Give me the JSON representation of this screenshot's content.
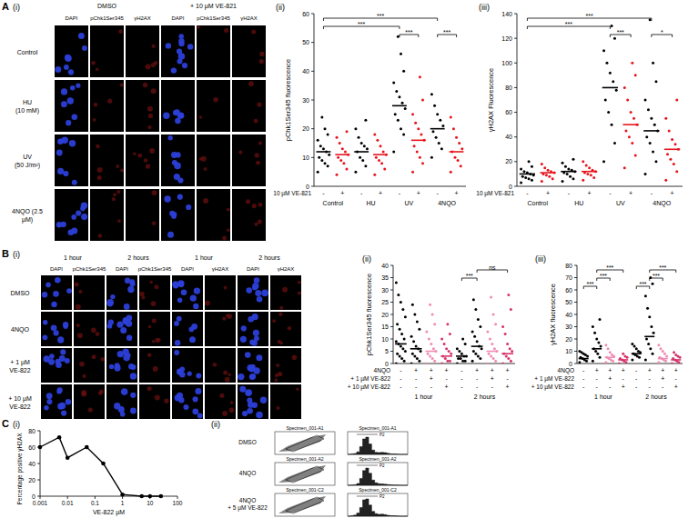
{
  "image_panels": [
    {
      "letter": "A",
      "label": "(i)",
      "columns": [
        {
          "label": "DMSO",
          "channels": [
            "DAPI",
            "pChk1Ser345",
            "γH2AX"
          ]
        },
        {
          "label": "+ 10 µM VE-821",
          "channels": [
            "DAPI",
            "pChk1Ser345",
            "γH2AX"
          ]
        }
      ],
      "rows": [
        [
          "Control"
        ],
        [
          "HU",
          "(10 mM)"
        ],
        [
          "UV",
          "(50 J/m²)"
        ],
        [
          "4NQO (2.5",
          "µM)"
        ]
      ]
    },
    {
      "letter": "B",
      "label": "(i)",
      "columns": [
        {
          "label": "1 hour",
          "channels": [
            "DAPI",
            "pChk1Ser345"
          ]
        },
        {
          "label": "2 hours",
          "channels": [
            "DAPI",
            "pChk1Ser345"
          ]
        },
        {
          "label": "1 hour",
          "channels": [
            "DAPI",
            "γH2AX"
          ]
        },
        {
          "label": "2 hours",
          "channels": [
            "DAPI",
            "γH2AX"
          ]
        }
      ],
      "rows": [
        [
          "DMSO"
        ],
        [
          "4NQO"
        ],
        [
          "+ 1 µM",
          "VE-822"
        ],
        [
          "+ 10 µM",
          "VE-822"
        ]
      ]
    }
  ],
  "chart_data": [
    {
      "type": "dot_plot",
      "label": "(ii)",
      "y_label": "pChk1Ser345 fluorescence",
      "ylim": [
        0,
        60
      ],
      "yticks": [
        0,
        10,
        20,
        30,
        40,
        50,
        60
      ],
      "categories": [
        "Control",
        "HU",
        "UV",
        "4NQO"
      ],
      "sign_rows": [
        "10 µM VE-821"
      ],
      "series": [
        {
          "color": "#000000",
          "signs": [
            "-"
          ],
          "values": [
            [
              5,
              7,
              8,
              9,
              10,
              11,
              12,
              13,
              14,
              16,
              18,
              20,
              24
            ],
            [
              5,
              7,
              9,
              10,
              12,
              13,
              14,
              15,
              17,
              20,
              23
            ],
            [
              12,
              18,
              20,
              23,
              25,
              27,
              29,
              31,
              33,
              36,
              40,
              46,
              52
            ],
            [
              10,
              13,
              15,
              17,
              19,
              21,
              23,
              25,
              28,
              32
            ]
          ],
          "means": [
            12,
            12,
            28,
            20
          ]
        },
        {
          "color": "#e8141c",
          "signs": [
            "+"
          ],
          "values": [
            [
              4,
              6,
              8,
              9,
              10,
              11,
              12,
              13,
              15,
              17,
              19
            ],
            [
              4,
              6,
              8,
              9,
              10,
              11,
              12,
              14,
              16,
              18
            ],
            [
              5,
              8,
              10,
              12,
              14,
              16,
              18,
              20,
              22,
              25,
              30,
              38
            ],
            [
              5,
              7,
              9,
              10,
              12,
              13,
              15,
              17,
              20,
              24
            ]
          ],
          "means": [
            11,
            11,
            16,
            12
          ]
        }
      ],
      "significance": [
        {
          "from": [
            2,
            0
          ],
          "to": [
            2,
            1
          ],
          "label": "***"
        },
        {
          "from": [
            3,
            0
          ],
          "to": [
            3,
            1
          ],
          "label": "***"
        },
        {
          "from": [
            0,
            0
          ],
          "to": [
            2,
            0
          ],
          "label": "***"
        },
        {
          "from": [
            0,
            0
          ],
          "to": [
            3,
            0
          ],
          "label": "***"
        }
      ]
    },
    {
      "type": "dot_plot",
      "label": "(iii)",
      "y_label": "γH2AX Fluorescence",
      "ylim": [
        0,
        140
      ],
      "yticks": [
        0,
        20,
        40,
        60,
        80,
        100,
        120,
        140
      ],
      "categories": [
        "Control",
        "HU",
        "UV",
        "4NQO"
      ],
      "sign_rows": [
        "10 µM VE-821"
      ],
      "series": [
        {
          "color": "#000000",
          "signs": [
            "-"
          ],
          "values": [
            [
              3,
              5,
              6,
              7,
              8,
              9,
              10,
              11,
              12,
              14,
              16,
              20
            ],
            [
              4,
              6,
              8,
              10,
              11,
              12,
              13,
              14,
              16,
              19,
              22
            ],
            [
              20,
              35,
              50,
              60,
              70,
              78,
              85,
              92,
              100,
              110,
              120,
              130
            ],
            [
              10,
              20,
              28,
              35,
              40,
              45,
              50,
              55,
              62,
              70,
              85,
              100,
              135
            ]
          ],
          "means": [
            10,
            12,
            80,
            45
          ]
        },
        {
          "color": "#e8141c",
          "signs": [
            "+"
          ],
          "values": [
            [
              4,
              6,
              8,
              9,
              10,
              11,
              12,
              13,
              15,
              18
            ],
            [
              5,
              7,
              9,
              10,
              11,
              12,
              13,
              15,
              17,
              20
            ],
            [
              15,
              25,
              35,
              40,
              45,
              50,
              55,
              60,
              70,
              80,
              90,
              100
            ],
            [
              5,
              12,
              18,
              22,
              26,
              30,
              34,
              38,
              45,
              55,
              70
            ]
          ],
          "means": [
            11,
            12,
            50,
            30
          ]
        }
      ],
      "significance": [
        {
          "from": [
            2,
            0
          ],
          "to": [
            2,
            1
          ],
          "label": "***"
        },
        {
          "from": [
            3,
            0
          ],
          "to": [
            3,
            1
          ],
          "label": "*"
        },
        {
          "from": [
            0,
            0
          ],
          "to": [
            2,
            0
          ],
          "label": "***"
        },
        {
          "from": [
            0,
            0
          ],
          "to": [
            3,
            0
          ],
          "label": "***"
        }
      ]
    },
    {
      "type": "dot_plot",
      "label": "(ii)",
      "y_label": "pChk1Ser345 fluorescence",
      "ylim": [
        0,
        40
      ],
      "yticks": [
        0,
        5,
        10,
        15,
        20,
        25,
        30,
        35,
        40
      ],
      "categories": [
        "1 hour",
        "2 hours"
      ],
      "sign_rows": [
        "4NQO",
        "+ 1 µM VE-822",
        "+ 10 µM VE-822"
      ],
      "series": [
        {
          "color": "#000000",
          "signs": [
            "-",
            "-",
            "-"
          ],
          "values": [
            [
              0,
              1,
              2,
              3,
              4,
              5,
              6,
              7,
              8,
              9,
              10,
              12,
              14,
              16,
              19,
              22,
              25,
              28,
              33
            ],
            [
              0,
              1,
              1,
              2,
              2,
              3,
              3,
              4,
              5,
              6,
              8,
              10
            ]
          ],
          "means": [
            8,
            3
          ]
        },
        {
          "color": "#000000",
          "signs": [
            "+",
            "-",
            "-"
          ],
          "values": [
            [
              0,
              1,
              2,
              3,
              4,
              5,
              6,
              7,
              9,
              11,
              14,
              17,
              20,
              24
            ],
            [
              1,
              2,
              3,
              4,
              5,
              6,
              7,
              9,
              11,
              13,
              15,
              18,
              22,
              26
            ]
          ],
          "means": [
            6,
            7
          ]
        },
        {
          "color": "#f08cb4",
          "signs": [
            "+",
            "+",
            "-"
          ],
          "values": [
            [
              0,
              1,
              2,
              3,
              4,
              5,
              6,
              8,
              10,
              13,
              16,
              20,
              24
            ],
            [
              0,
              1,
              2,
              3,
              4,
              5,
              6,
              8,
              10,
              13,
              16,
              20,
              27
            ]
          ],
          "means": [
            5,
            5
          ]
        },
        {
          "color": "#d6336c",
          "signs": [
            "+",
            "-",
            "+"
          ],
          "values": [
            [
              0,
              1,
              1,
              2,
              3,
              4,
              5,
              6,
              8,
              10,
              12,
              16
            ],
            [
              0,
              1,
              2,
              3,
              4,
              5,
              6,
              8,
              12,
              15,
              22,
              28
            ]
          ],
          "means": [
            3,
            4
          ]
        }
      ],
      "significance": [
        {
          "from": [
            1,
            0
          ],
          "to": [
            1,
            1
          ],
          "label": "***"
        },
        {
          "from": [
            1,
            1
          ],
          "to": [
            1,
            3
          ],
          "label": "ns"
        }
      ]
    },
    {
      "type": "dot_plot",
      "label": "(iii)",
      "y_label": "γH2AX fluorescence",
      "ylim": [
        0,
        80
      ],
      "yticks": [
        0,
        10,
        20,
        30,
        40,
        50,
        60,
        70,
        80
      ],
      "categories": [
        "1 hour",
        "2 hours"
      ],
      "sign_rows": [
        "4NQO",
        "+ 1 µM VE-822",
        "+ 10 µM VE-822"
      ],
      "series": [
        {
          "color": "#000000",
          "signs": [
            "-",
            "-",
            "-"
          ],
          "values": [
            [
              1,
              2,
              3,
              4,
              5,
              6,
              7,
              8,
              9,
              10
            ],
            [
              3,
              5,
              6,
              7,
              8,
              9,
              10,
              12,
              14,
              16
            ]
          ],
          "means": [
            4,
            8
          ]
        },
        {
          "color": "#000000",
          "signs": [
            "+",
            "-",
            "-"
          ],
          "values": [
            [
              2,
              5,
              8,
              10,
              12,
              14,
              17,
              20,
              25,
              30,
              36
            ],
            [
              3,
              8,
              12,
              16,
              20,
              25,
              30,
              38,
              45,
              55,
              65,
              70
            ]
          ],
          "means": [
            12,
            22
          ]
        },
        {
          "color": "#f08cb4",
          "signs": [
            "+",
            "+",
            "-"
          ],
          "values": [
            [
              1,
              2,
              3,
              4,
              5,
              6,
              7,
              9,
              12,
              15
            ],
            [
              1,
              2,
              3,
              4,
              5,
              6,
              8,
              10,
              12,
              15
            ]
          ],
          "means": [
            5,
            4
          ]
        },
        {
          "color": "#d6336c",
          "signs": [
            "+",
            "-",
            "+"
          ],
          "values": [
            [
              0,
              1,
              2,
              3,
              4,
              5,
              6,
              8
            ],
            [
              0,
              1,
              2,
              3,
              4,
              5,
              6,
              7,
              9
            ]
          ],
          "means": [
            3,
            3
          ]
        }
      ],
      "significance": [
        {
          "from": [
            0,
            0
          ],
          "to": [
            0,
            1
          ],
          "label": "***"
        },
        {
          "from": [
            0,
            1
          ],
          "to": [
            0,
            2
          ],
          "label": "***"
        },
        {
          "from": [
            0,
            1
          ],
          "to": [
            0,
            3
          ],
          "label": "***"
        },
        {
          "from": [
            1,
            0
          ],
          "to": [
            1,
            1
          ],
          "label": "***"
        },
        {
          "from": [
            1,
            1
          ],
          "to": [
            1,
            2
          ],
          "label": "***"
        },
        {
          "from": [
            1,
            1
          ],
          "to": [
            1,
            3
          ],
          "label": "***"
        }
      ]
    },
    {
      "type": "line",
      "panel": "C",
      "label": "(i)",
      "x_label": "VE-822 µM",
      "y_label": "Percentage positive γH2AX",
      "log": "x",
      "xlim": [
        0.001,
        100
      ],
      "xticks": [
        0.001,
        0.01,
        0.1,
        1,
        10,
        100
      ],
      "ylim": [
        0,
        80
      ],
      "yticks": [
        0,
        20,
        40,
        60,
        80
      ],
      "x": [
        0.001,
        0.005,
        0.01,
        0.05,
        0.2,
        1,
        5,
        10,
        25
      ],
      "values": [
        60,
        72,
        47,
        60,
        40,
        2,
        0,
        0,
        0
      ],
      "color": "#000000",
      "marker": "circle"
    }
  ],
  "flow": {
    "label": "(ii)",
    "ylim": [
      0,
      100
    ],
    "rows": [
      {
        "label": [
          "DMSO"
        ],
        "dot_title": "Specimen_001-A1",
        "hist_title": "Specimen_001-A1",
        "gate": "P2",
        "histogram": [
          0,
          2,
          5,
          15,
          45,
          90,
          100,
          60,
          25,
          12,
          10,
          12,
          10,
          6,
          3,
          2,
          1,
          0,
          0,
          0
        ]
      },
      {
        "label": [
          "4NQO"
        ],
        "dot_title": "Specimen_001-A2",
        "hist_title": "Specimen_001-A2",
        "gate": "P2",
        "histogram": [
          0,
          1,
          3,
          10,
          40,
          85,
          100,
          70,
          30,
          14,
          9,
          8,
          6,
          4,
          2,
          1,
          1,
          0,
          0,
          0
        ]
      },
      {
        "label": [
          "4NQO",
          "+ 5 µM VE-822"
        ],
        "dot_title": "Specimen_001-C2",
        "hist_title": "Specimen_001-C2",
        "gate": "P2",
        "histogram": [
          0,
          2,
          6,
          18,
          50,
          95,
          100,
          65,
          28,
          15,
          11,
          12,
          9,
          5,
          3,
          2,
          1,
          0,
          0,
          0
        ]
      }
    ]
  }
}
